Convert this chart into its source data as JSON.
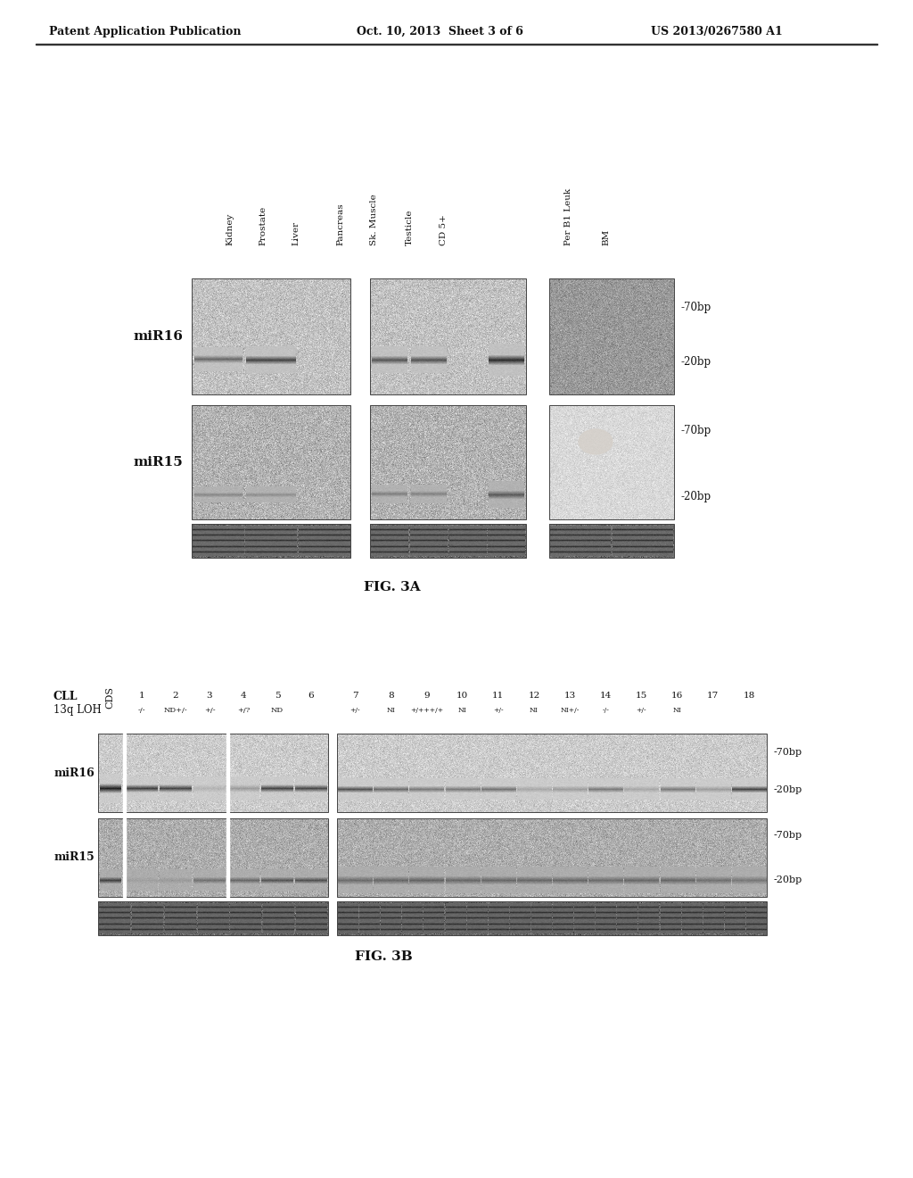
{
  "page_title_left": "Patent Application Publication",
  "page_title_center": "Oct. 10, 2013  Sheet 3 of 6",
  "page_title_right": "US 2013/0267580 A1",
  "fig3a_caption": "FIG. 3A",
  "fig3b_caption": "FIG. 3B",
  "fig3a_col_labels": [
    "Kidney",
    "Prostate",
    "Liver",
    "Pancreas",
    "Sk. Muscle",
    "Testicle",
    "CD 5+",
    "Per B1 Leuk",
    "BM"
  ],
  "fig3b_cll_label": "CLL",
  "fig3b_13q_label": "13q LOH",
  "fig3b_cds_label": "CDS",
  "fig3b_lane_numbers": [
    "1",
    "2",
    "3",
    "4",
    "5",
    "6",
    "7",
    "8",
    "9",
    "10",
    "11",
    "12",
    "13",
    "14",
    "15",
    "16",
    "17",
    "18"
  ],
  "fig3b_loh_s1": [
    "-/-",
    "ND+/-",
    "+/-",
    "+/?",
    "ND"
  ],
  "fig3b_loh_s2": [
    "+/-",
    "NI",
    "+/+++/+",
    "NI",
    "+/-",
    "NI",
    "NI+/-",
    " -/-",
    "+/-",
    "NI",
    "",
    ""
  ],
  "bg_color": "#ffffff"
}
